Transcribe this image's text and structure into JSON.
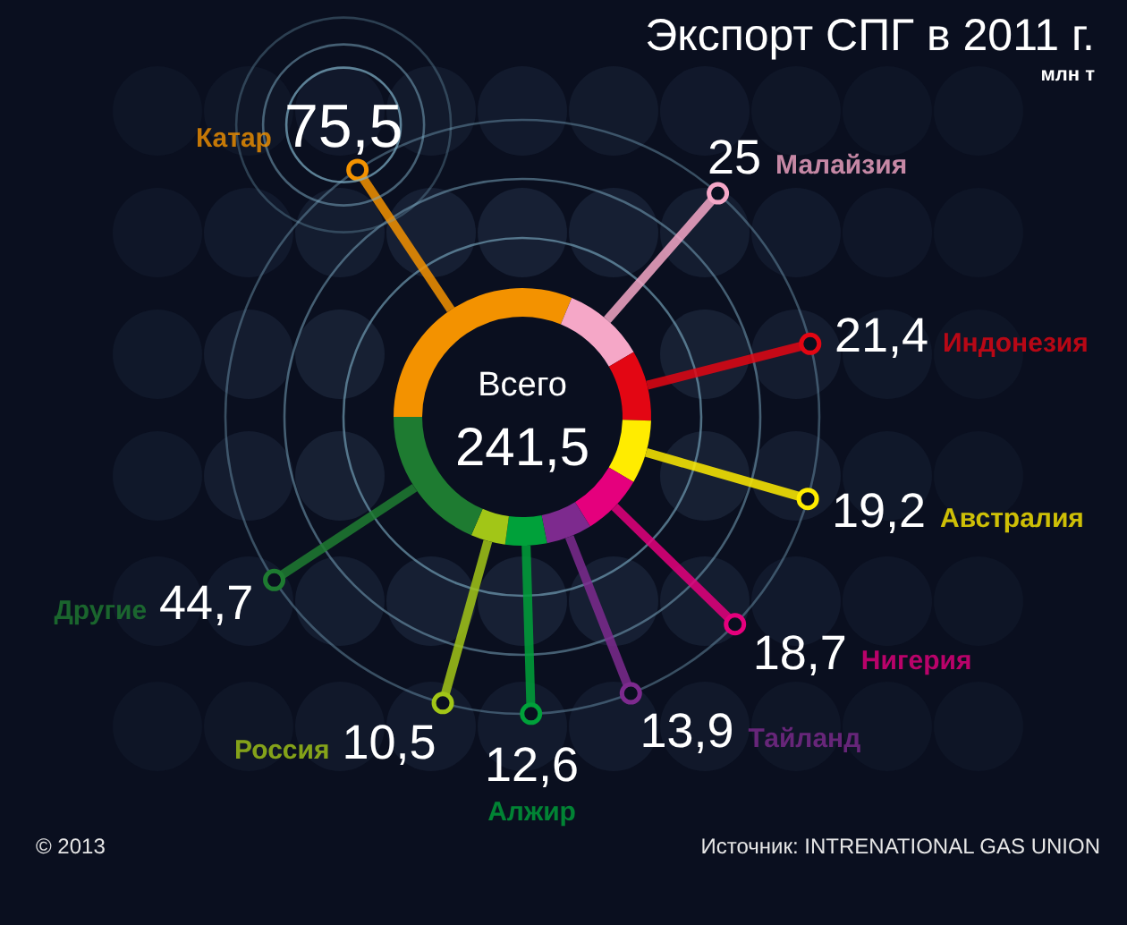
{
  "chart_data": {
    "type": "donut",
    "title": "Экспорт СПГ в 2011 г.",
    "subtitle": "млн т",
    "categories": [
      "Катар",
      "Малайзия",
      "Индонезия",
      "Австралия",
      "Нигерия",
      "Тайланд",
      "Алжир",
      "Россия",
      "Другие"
    ],
    "values": [
      75.5,
      25,
      21.4,
      19.2,
      18.7,
      13.9,
      12.6,
      10.5,
      44.7
    ],
    "colors": [
      "#f39200",
      "#f5a7c7",
      "#e30613",
      "#ffec00",
      "#e5007d",
      "#7d2a8e",
      "#00a13a",
      "#a2c617",
      "#1e7b31"
    ],
    "value_labels": [
      "75,5",
      "25",
      "21,4",
      "19,2",
      "18,7",
      "13,9",
      "12,6",
      "10,5",
      "44,7"
    ],
    "annotations": [
      "Всего",
      "241,5",
      "© 2013",
      "Источник: INTRENATIONAL GAS UNION"
    ]
  }
}
